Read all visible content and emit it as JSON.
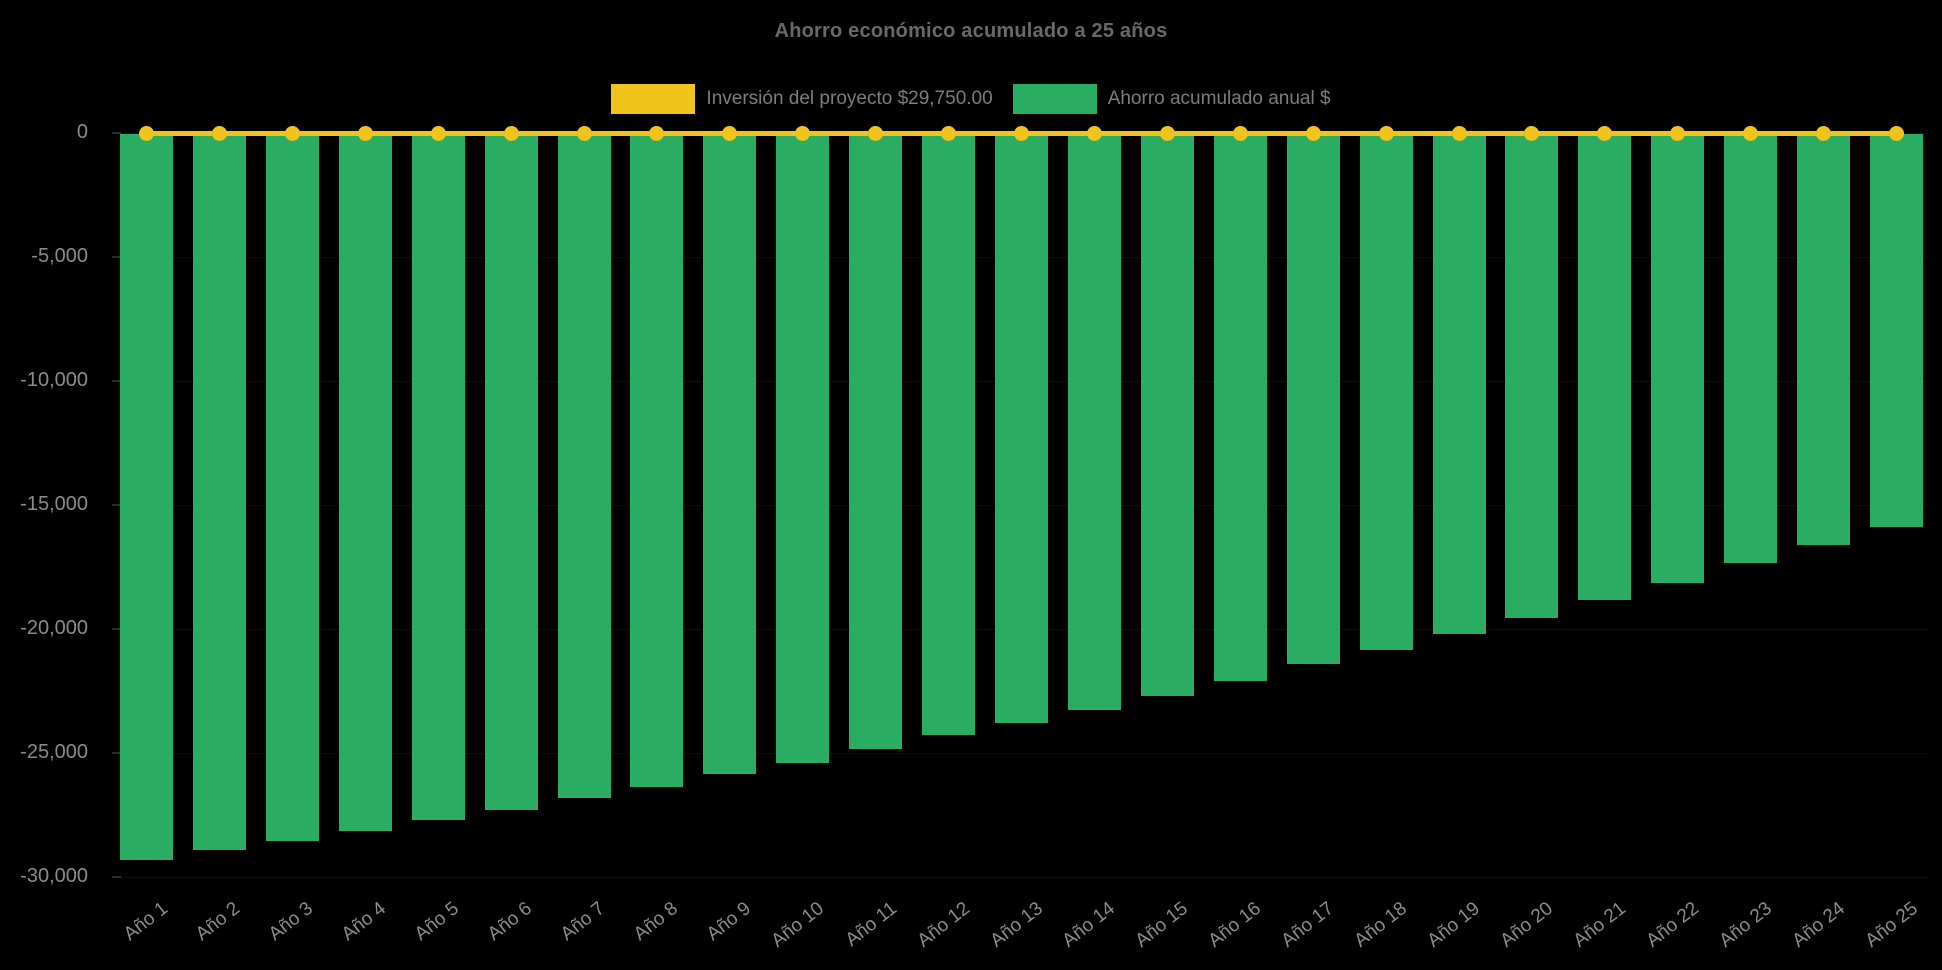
{
  "title": "Ahorro económico acumulado a 25 años",
  "legend": {
    "items": [
      {
        "label": "Inversión del proyecto $29,750.00",
        "color": "#f0c41d"
      },
      {
        "label": "Ahorro acumulado anual $",
        "color": "#2aac62"
      }
    ]
  },
  "chart_data": {
    "type": "bar",
    "title": "Ahorro económico acumulado a 25 años",
    "categories": [
      "Año 1",
      "Año 2",
      "Año 3",
      "Año 4",
      "Año 5",
      "Año 6",
      "Año 7",
      "Año 8",
      "Año 9",
      "Año 10",
      "Año 11",
      "Año 12",
      "Año 13",
      "Año 14",
      "Año 15",
      "Año 16",
      "Año 17",
      "Año 18",
      "Año 19",
      "Año 20",
      "Año 21",
      "Año 22",
      "Año 23",
      "Año 24",
      "Año 25"
    ],
    "series": [
      {
        "name": "Inversión del proyecto $29,750.00",
        "type": "line",
        "color": "#f0c41d",
        "marker": "circle",
        "values": [
          0,
          0,
          0,
          0,
          0,
          0,
          0,
          0,
          0,
          0,
          0,
          0,
          0,
          0,
          0,
          0,
          0,
          0,
          0,
          0,
          0,
          0,
          0,
          0,
          0
        ]
      },
      {
        "name": "Ahorro acumulado anual $",
        "type": "bar",
        "color": "#2aac62",
        "values": [
          -29320,
          -28910,
          -28550,
          -28140,
          -27700,
          -27300,
          -26810,
          -26370,
          -25850,
          -25400,
          -24840,
          -24270,
          -23790,
          -23270,
          -22700,
          -22100,
          -21410,
          -20850,
          -20200,
          -19550,
          -18830,
          -18140,
          -17340,
          -16610,
          -15890
        ]
      }
    ],
    "xlabel": "",
    "ylabel": "",
    "ylim": [
      -30000,
      0
    ],
    "yticks": [
      {
        "value": 0,
        "label": "0"
      },
      {
        "value": -5000,
        "label": "-5,000"
      },
      {
        "value": -10000,
        "label": "-10,000"
      },
      {
        "value": -15000,
        "label": "-15,000"
      },
      {
        "value": -20000,
        "label": "-20,000"
      },
      {
        "value": -25000,
        "label": "-25,000"
      },
      {
        "value": -30000,
        "label": "-30,000"
      }
    ],
    "grid": "faint-horizontal",
    "legend_position": "top-center",
    "background": "#000000"
  }
}
